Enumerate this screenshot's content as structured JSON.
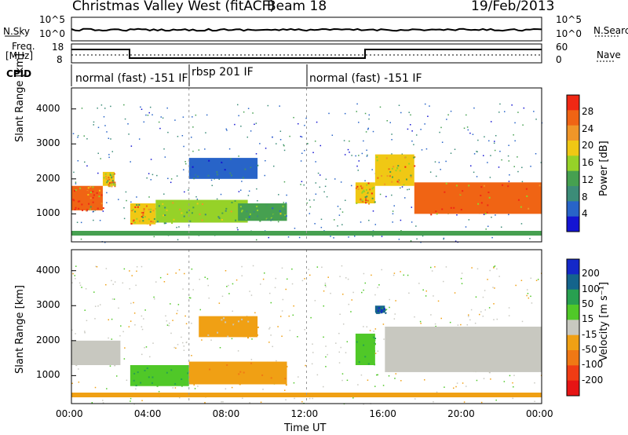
{
  "header": {
    "title": "Christmas Valley West (fitACF)",
    "beam": "Beam 18",
    "date": "19/Feb/2013"
  },
  "nsky_panel": {
    "left_label": "N.Sky",
    "right_label": "N.Search",
    "left_ticks": [
      "10^5",
      "10^0"
    ],
    "right_ticks": [
      "10^5",
      "10^0"
    ]
  },
  "freq_panel": {
    "left_label_line1": "Freq.",
    "left_label_line2": "[MHz]",
    "right_label": "Nave",
    "left_ticks": [
      "18",
      "8"
    ],
    "right_ticks": [
      "60",
      "0"
    ]
  },
  "cpid_panel": {
    "label": "CPID",
    "segments": [
      {
        "start": 0,
        "end": 6,
        "text": "normal (fast) -151 IF"
      },
      {
        "start": 6,
        "end": 12,
        "text": "rbsp 201 IF"
      },
      {
        "start": 12,
        "end": 24,
        "text": "normal (fast) -151 IF"
      }
    ]
  },
  "chart_data": [
    {
      "type": "heatmap",
      "name": "power",
      "ylabel": "Slant Range [km]",
      "yticks": [
        "1000",
        "2000",
        "3000",
        "4000"
      ],
      "ylim": [
        200,
        4600
      ],
      "colorbar": {
        "label": "Power [dB]",
        "ticks": [
          "4",
          "8",
          "12",
          "16",
          "20",
          "24",
          "28"
        ],
        "colors": [
          "#1414d2",
          "#2864c8",
          "#3c8c78",
          "#46a050",
          "#96d228",
          "#f0c814",
          "#f09628",
          "#f06414",
          "#f02814"
        ]
      },
      "features": [
        {
          "t0": 0.0,
          "t1": 1.6,
          "r0": 1100,
          "r1": 1800,
          "value": 28
        },
        {
          "t0": 1.6,
          "t1": 2.2,
          "r0": 1800,
          "r1": 2200,
          "value": 20
        },
        {
          "t0": 3.0,
          "t1": 4.3,
          "r0": 700,
          "r1": 1300,
          "value": 20
        },
        {
          "t0": 4.3,
          "t1": 9.0,
          "r0": 750,
          "r1": 1400,
          "value": 16
        },
        {
          "t0": 8.5,
          "t1": 11.0,
          "r0": 800,
          "r1": 1300,
          "value": 12
        },
        {
          "t0": 6.0,
          "t1": 9.5,
          "r0": 2000,
          "r1": 2600,
          "value": 6
        },
        {
          "t0": 14.5,
          "t1": 15.5,
          "r0": 1300,
          "r1": 1900,
          "value": 20
        },
        {
          "t0": 15.5,
          "t1": 17.5,
          "r0": 1800,
          "r1": 2700,
          "value": 20
        },
        {
          "t0": 17.5,
          "t1": 24.0,
          "r0": 1000,
          "r1": 1900,
          "value": 28
        }
      ]
    },
    {
      "type": "heatmap",
      "name": "velocity",
      "ylabel": "Slant Range [km]",
      "yticks": [
        "1000",
        "2000",
        "3000",
        "4000"
      ],
      "ylim": [
        200,
        4600
      ],
      "xlabel": "Time UT",
      "xticks": [
        "00:00",
        "04:00",
        "08:00",
        "12:00",
        "16:00",
        "20:00",
        "00:00"
      ],
      "colorbar": {
        "label": "Velocity [m s⁻¹]",
        "ticks": [
          "200",
          "100",
          "50",
          "15",
          "-15",
          "-50",
          "-100",
          "-200"
        ],
        "colors": [
          "#1428c8",
          "#14648c",
          "#28a050",
          "#50c828",
          "#c8c8c0",
          "#f0a014",
          "#f07814",
          "#f03c14",
          "#e61414"
        ]
      },
      "features": [
        {
          "t0": 0.0,
          "t1": 2.5,
          "r0": 1300,
          "r1": 2000,
          "value": 0
        },
        {
          "t0": 3.0,
          "t1": 6.0,
          "r0": 700,
          "r1": 1300,
          "value": 40
        },
        {
          "t0": 6.0,
          "t1": 11.0,
          "r0": 750,
          "r1": 1400,
          "value": -40
        },
        {
          "t0": 6.5,
          "t1": 9.5,
          "r0": 2100,
          "r1": 2700,
          "value": -20
        },
        {
          "t0": 14.5,
          "t1": 15.5,
          "r0": 1300,
          "r1": 2200,
          "value": 40
        },
        {
          "t0": 15.5,
          "t1": 16.0,
          "r0": 2800,
          "r1": 3000,
          "value": 150
        },
        {
          "t0": 16.0,
          "t1": 24.0,
          "r0": 1100,
          "r1": 2400,
          "value": 0
        }
      ]
    }
  ]
}
